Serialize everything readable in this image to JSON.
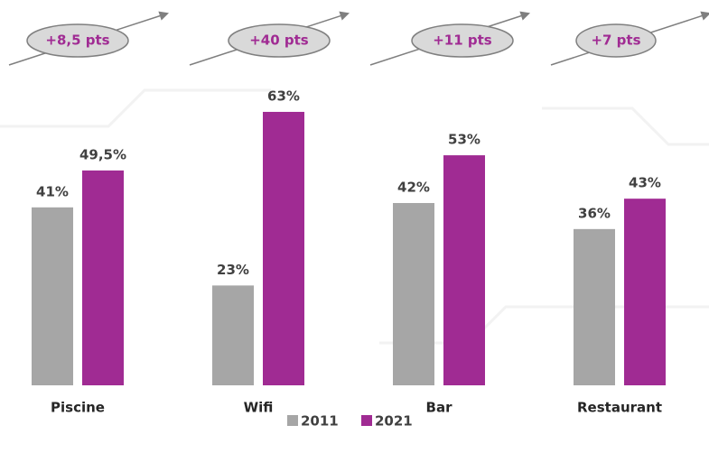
{
  "chart_data": {
    "type": "bar",
    "categories": [
      "Piscine",
      "Wifi",
      "Bar",
      "Restaurant"
    ],
    "series": [
      {
        "name": "2011",
        "color": "#a6a6a6",
        "values": [
          41,
          23,
          42,
          36
        ],
        "value_labels": [
          "41%",
          "23%",
          "42%",
          "36%"
        ]
      },
      {
        "name": "2021",
        "color": "#a02b93",
        "values": [
          49.5,
          63,
          53,
          43
        ],
        "value_labels": [
          "49,5%",
          "63%",
          "53%",
          "43%"
        ]
      }
    ],
    "annotations": [
      "+8,5 pts",
      "+40 pts",
      "+11 pts",
      "+7 pts"
    ]
  }
}
